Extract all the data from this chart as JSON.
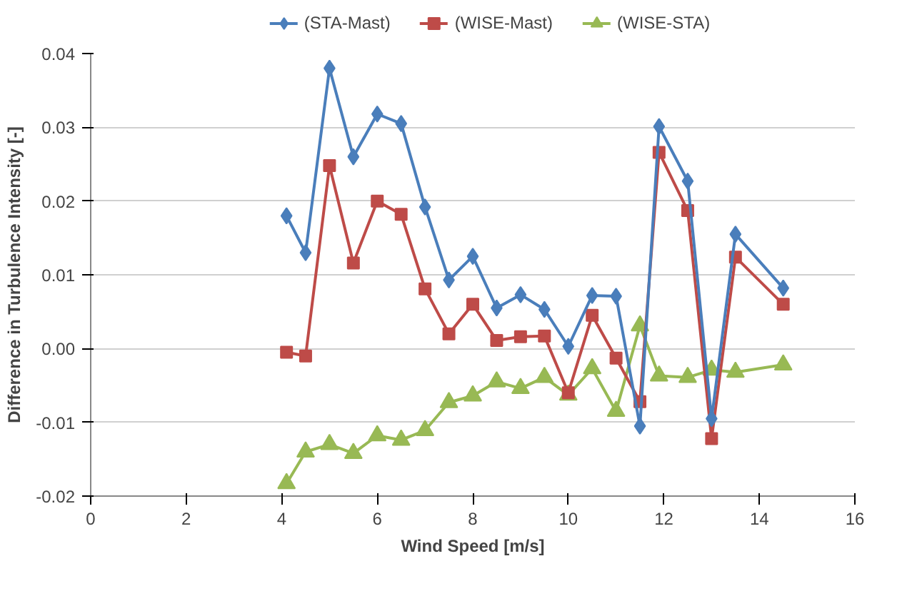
{
  "chart_data": {
    "type": "line",
    "xlabel": "Wind Speed [m/s]",
    "ylabel": "Difference in Turbulence Intensity [-]",
    "x": [
      4.1,
      4.5,
      5.0,
      5.5,
      6.0,
      6.5,
      7.0,
      7.5,
      8.0,
      8.5,
      9.0,
      9.5,
      10.0,
      10.5,
      11.0,
      11.5,
      11.9,
      12.5,
      13.0,
      13.5,
      14.5
    ],
    "series": [
      {
        "name": "(STA-Mast)",
        "color": "#4a7ebb",
        "marker": "diamond",
        "values": [
          0.018,
          0.013,
          0.038,
          0.026,
          0.0318,
          0.0305,
          0.0192,
          0.0093,
          0.0125,
          0.0055,
          0.0073,
          0.0053,
          0.0003,
          0.0072,
          0.0071,
          -0.0105,
          0.0301,
          0.0227,
          -0.0095,
          0.0155,
          0.0082
        ]
      },
      {
        "name": "(WISE-Mast)",
        "color": "#be4b48",
        "marker": "square",
        "values": [
          -0.0005,
          -0.001,
          0.0248,
          0.0116,
          0.02,
          0.0182,
          0.0081,
          0.002,
          0.006,
          0.0011,
          0.0016,
          0.0017,
          -0.006,
          0.0045,
          -0.0013,
          -0.0072,
          0.0266,
          0.0187,
          -0.0122,
          0.0124,
          0.006
        ]
      },
      {
        "name": "(WISE-STA)",
        "color": "#98b954",
        "marker": "triangle",
        "values": [
          -0.0183,
          -0.014,
          -0.013,
          -0.0142,
          -0.0118,
          -0.0124,
          -0.0111,
          -0.0073,
          -0.0064,
          -0.0045,
          -0.0054,
          -0.0039,
          -0.0063,
          -0.0027,
          -0.0085,
          0.0031,
          -0.0037,
          -0.0039,
          -0.0029,
          -0.0032,
          -0.0022
        ]
      }
    ],
    "xlim": [
      0,
      16
    ],
    "xticks": [
      0,
      2,
      4,
      6,
      8,
      10,
      12,
      14,
      16
    ],
    "ylim": [
      -0.02,
      0.04
    ],
    "yticks": [
      {
        "value": -0.02,
        "label": "-0.02"
      },
      {
        "value": -0.01,
        "label": "-0.01"
      },
      {
        "value": 0,
        "label": "0.00"
      },
      {
        "value": 0.01,
        "label": "0.01"
      },
      {
        "value": 0.02,
        "label": "0.02"
      },
      {
        "value": 0.03,
        "label": "0.03"
      },
      {
        "value": 0.04,
        "label": "0.04"
      }
    ],
    "grid": "y",
    "legend": "top",
    "line_style": "solid"
  }
}
